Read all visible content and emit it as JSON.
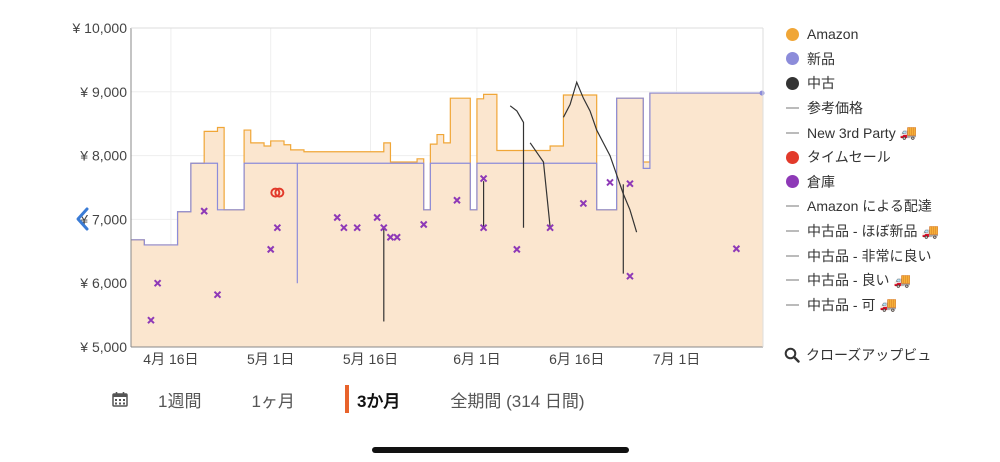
{
  "chart_data": {
    "type": "line",
    "y_axis": {
      "min": 5000,
      "max": 10000,
      "ticks": [
        {
          "value": 5000,
          "label": "¥ 5,000"
        },
        {
          "value": 6000,
          "label": "¥ 6,000"
        },
        {
          "value": 7000,
          "label": "¥ 7,000"
        },
        {
          "value": 8000,
          "label": "¥ 8,000"
        },
        {
          "value": 9000,
          "label": "¥ 9,000"
        },
        {
          "value": 10000,
          "label": "¥ 10,000"
        }
      ]
    },
    "x_axis": {
      "min": "2024-04-10",
      "max": "2024-07-14",
      "ticks": [
        {
          "date": "2024-04-16",
          "label": "4月 16日"
        },
        {
          "date": "2024-05-01",
          "label": "5月 1日"
        },
        {
          "date": "2024-05-16",
          "label": "5月 16日"
        },
        {
          "date": "2024-06-01",
          "label": "6月 1日"
        },
        {
          "date": "2024-06-16",
          "label": "6月 16日"
        },
        {
          "date": "2024-07-01",
          "label": "7月 1日"
        }
      ]
    },
    "grid": true,
    "legend_position": "right",
    "series": [
      {
        "name": "Amazon",
        "color": "#f0a637",
        "style": "step-area",
        "points": [
          [
            "2024-04-10",
            6680
          ],
          [
            "2024-04-12",
            6600
          ],
          [
            "2024-04-17",
            7120
          ],
          [
            "2024-04-19",
            7880
          ],
          [
            "2024-04-20",
            7880
          ],
          [
            "2024-04-21",
            8380
          ],
          [
            "2024-04-23",
            8440
          ],
          [
            "2024-04-24",
            7150
          ],
          [
            "2024-04-27",
            8400
          ],
          [
            "2024-04-28",
            8200
          ],
          [
            "2024-04-30",
            8150
          ],
          [
            "2024-05-01",
            8230
          ],
          [
            "2024-05-03",
            8170
          ],
          [
            "2024-05-04",
            8090
          ],
          [
            "2024-05-06",
            8060
          ],
          [
            "2024-05-18",
            8200
          ],
          [
            "2024-05-19",
            7900
          ],
          [
            "2024-05-23",
            7950
          ],
          [
            "2024-05-24",
            7150
          ],
          [
            "2024-05-25",
            8180
          ],
          [
            "2024-05-26",
            8330
          ],
          [
            "2024-05-27",
            8200
          ],
          [
            "2024-05-28",
            8900
          ],
          [
            "2024-05-31",
            7150
          ],
          [
            "2024-06-01",
            8890
          ],
          [
            "2024-06-02",
            8960
          ],
          [
            "2024-06-04",
            8080
          ],
          [
            "2024-06-12",
            8150
          ],
          [
            "2024-06-14",
            8950
          ],
          [
            "2024-06-19",
            7150
          ],
          [
            "2024-06-22",
            8900
          ],
          [
            "2024-06-26",
            7900
          ],
          [
            "2024-06-27",
            8980
          ],
          [
            "2024-07-14",
            8980
          ]
        ]
      },
      {
        "name": "新品",
        "color": "#8c8cda",
        "style": "step",
        "points": [
          [
            "2024-04-10",
            6680
          ],
          [
            "2024-04-12",
            6600
          ],
          [
            "2024-04-17",
            7120
          ],
          [
            "2024-04-19",
            7880
          ],
          [
            "2024-04-20",
            7880
          ],
          [
            "2024-04-23",
            7150
          ],
          [
            "2024-04-27",
            7880
          ],
          [
            "2024-05-05",
            7880
          ],
          [
            "2024-05-05",
            6000
          ],
          [
            "2024-05-05",
            7880
          ],
          [
            "2024-05-24",
            7880
          ],
          [
            "2024-05-24",
            7150
          ],
          [
            "2024-05-25",
            7880
          ],
          [
            "2024-05-30",
            7880
          ],
          [
            "2024-05-31",
            7150
          ],
          [
            "2024-06-01",
            7880
          ],
          [
            "2024-06-17",
            7880
          ],
          [
            "2024-06-19",
            7150
          ],
          [
            "2024-06-22",
            8900
          ],
          [
            "2024-06-26",
            7800
          ],
          [
            "2024-06-27",
            8980
          ],
          [
            "2024-07-14",
            8980
          ]
        ]
      },
      {
        "name": "中古",
        "color": "#333333",
        "style": "segments",
        "segments": [
          [
            [
              "2024-06-06",
              8780
            ],
            [
              "2024-06-07",
              8700
            ],
            [
              "2024-06-08",
              8520
            ],
            [
              "2024-06-08",
              6870
            ]
          ],
          [
            [
              "2024-06-09",
              8200
            ],
            [
              "2024-06-10",
              8050
            ],
            [
              "2024-06-11",
              7900
            ],
            [
              "2024-06-12",
              6880
            ]
          ],
          [
            [
              "2024-06-14",
              8600
            ],
            [
              "2024-06-15",
              8800
            ],
            [
              "2024-06-16",
              9150
            ],
            [
              "2024-06-17",
              8900
            ],
            [
              "2024-06-18",
              8700
            ],
            [
              "2024-06-19",
              8400
            ],
            [
              "2024-06-20",
              8200
            ],
            [
              "2024-06-21",
              8000
            ],
            [
              "2024-06-22",
              7700
            ],
            [
              "2024-06-23",
              7400
            ],
            [
              "2024-06-24",
              7150
            ],
            [
              "2024-06-25",
              6800
            ]
          ],
          [
            [
              "2024-05-18",
              6870
            ],
            [
              "2024-05-18",
              5400
            ]
          ],
          [
            [
              "2024-06-02",
              7600
            ],
            [
              "2024-06-02",
              6870
            ]
          ],
          [
            [
              "2024-06-23",
              7550
            ],
            [
              "2024-06-23",
              6150
            ]
          ]
        ]
      },
      {
        "name": "タイムセール",
        "color": "#e23a2b",
        "style": "circles",
        "points": [
          [
            "2024-05-02",
            7420
          ]
        ]
      },
      {
        "name": "倉庫",
        "color": "#8e39b7",
        "style": "markers",
        "points": [
          [
            "2024-04-13",
            5420
          ],
          [
            "2024-04-14",
            6000
          ],
          [
            "2024-04-21",
            7130
          ],
          [
            "2024-04-23",
            5820
          ],
          [
            "2024-05-01",
            6530
          ],
          [
            "2024-05-02",
            6870
          ],
          [
            "2024-05-11",
            7030
          ],
          [
            "2024-05-12",
            6870
          ],
          [
            "2024-05-14",
            6870
          ],
          [
            "2024-05-17",
            7030
          ],
          [
            "2024-05-18",
            6870
          ],
          [
            "2024-05-19",
            6720
          ],
          [
            "2024-05-20",
            6720
          ],
          [
            "2024-05-24",
            6920
          ],
          [
            "2024-05-29",
            7300
          ],
          [
            "2024-06-02",
            7640
          ],
          [
            "2024-06-02",
            6870
          ],
          [
            "2024-06-07",
            6530
          ],
          [
            "2024-06-12",
            6870
          ],
          [
            "2024-06-17",
            7250
          ],
          [
            "2024-06-21",
            7580
          ],
          [
            "2024-06-24",
            7560
          ],
          [
            "2024-06-24",
            6110
          ],
          [
            "2024-07-10",
            6540
          ]
        ]
      },
      {
        "name": "参考価格",
        "color": "#bbbbbb",
        "style": "none"
      },
      {
        "name": "New 3rd Party",
        "color": "#bbbbbb",
        "style": "none"
      },
      {
        "name": "Amazon による配達",
        "color": "#bbbbbb",
        "style": "none"
      },
      {
        "name": "中古品 - ほぼ新品",
        "color": "#bbbbbb",
        "style": "none"
      },
      {
        "name": "中古品 - 非常に良い",
        "color": "#bbbbbb",
        "style": "none"
      },
      {
        "name": "中古品 - 良い",
        "color": "#bbbbbb",
        "style": "none"
      },
      {
        "name": "中古品 - 可",
        "color": "#bbbbbb",
        "style": "none"
      }
    ]
  },
  "legend": {
    "items": [
      {
        "label": "Amazon",
        "marker": "dot",
        "color": "#f0a637",
        "truck": false
      },
      {
        "label": "新品",
        "marker": "dot",
        "color": "#8c8cda",
        "truck": false
      },
      {
        "label": "中古",
        "marker": "dot",
        "color": "#333333",
        "truck": false
      },
      {
        "label": "参考価格",
        "marker": "dash",
        "color": "#bbbbbb",
        "truck": false
      },
      {
        "label": "New 3rd Party",
        "marker": "dash",
        "color": "#bbbbbb",
        "truck": true
      },
      {
        "label": "タイムセール",
        "marker": "dot",
        "color": "#e23a2b",
        "truck": false
      },
      {
        "label": "倉庫",
        "marker": "dot",
        "color": "#8e39b7",
        "truck": false
      },
      {
        "label": "Amazon による配達",
        "marker": "dash",
        "color": "#bbbbbb",
        "truck": false
      },
      {
        "label": "中古品 - ほぼ新品",
        "marker": "dash",
        "color": "#bbbbbb",
        "truck": true
      },
      {
        "label": "中古品 - 非常に良い",
        "marker": "dash",
        "color": "#bbbbbb",
        "truck": false
      },
      {
        "label": "中古品 - 良い",
        "marker": "dash",
        "color": "#bbbbbb",
        "truck": true
      },
      {
        "label": "中古品 - 可",
        "marker": "dash",
        "color": "#bbbbbb",
        "truck": true
      }
    ],
    "truck_glyph": "🚚",
    "zoom_label": "クローズアップビュ",
    "zoom_icon": "magnifier-icon"
  },
  "range_bar": {
    "icon": "calendar-icon",
    "options": [
      {
        "label": "1週間",
        "active": false
      },
      {
        "label": "1ヶ月",
        "active": false
      },
      {
        "label": "3か月",
        "active": true
      },
      {
        "label": "全期間 (314 日間)",
        "active": false
      }
    ]
  },
  "colors": {
    "fill": "#fbe6cf",
    "grid": "#eeeeee",
    "accent": "#e8632b"
  }
}
